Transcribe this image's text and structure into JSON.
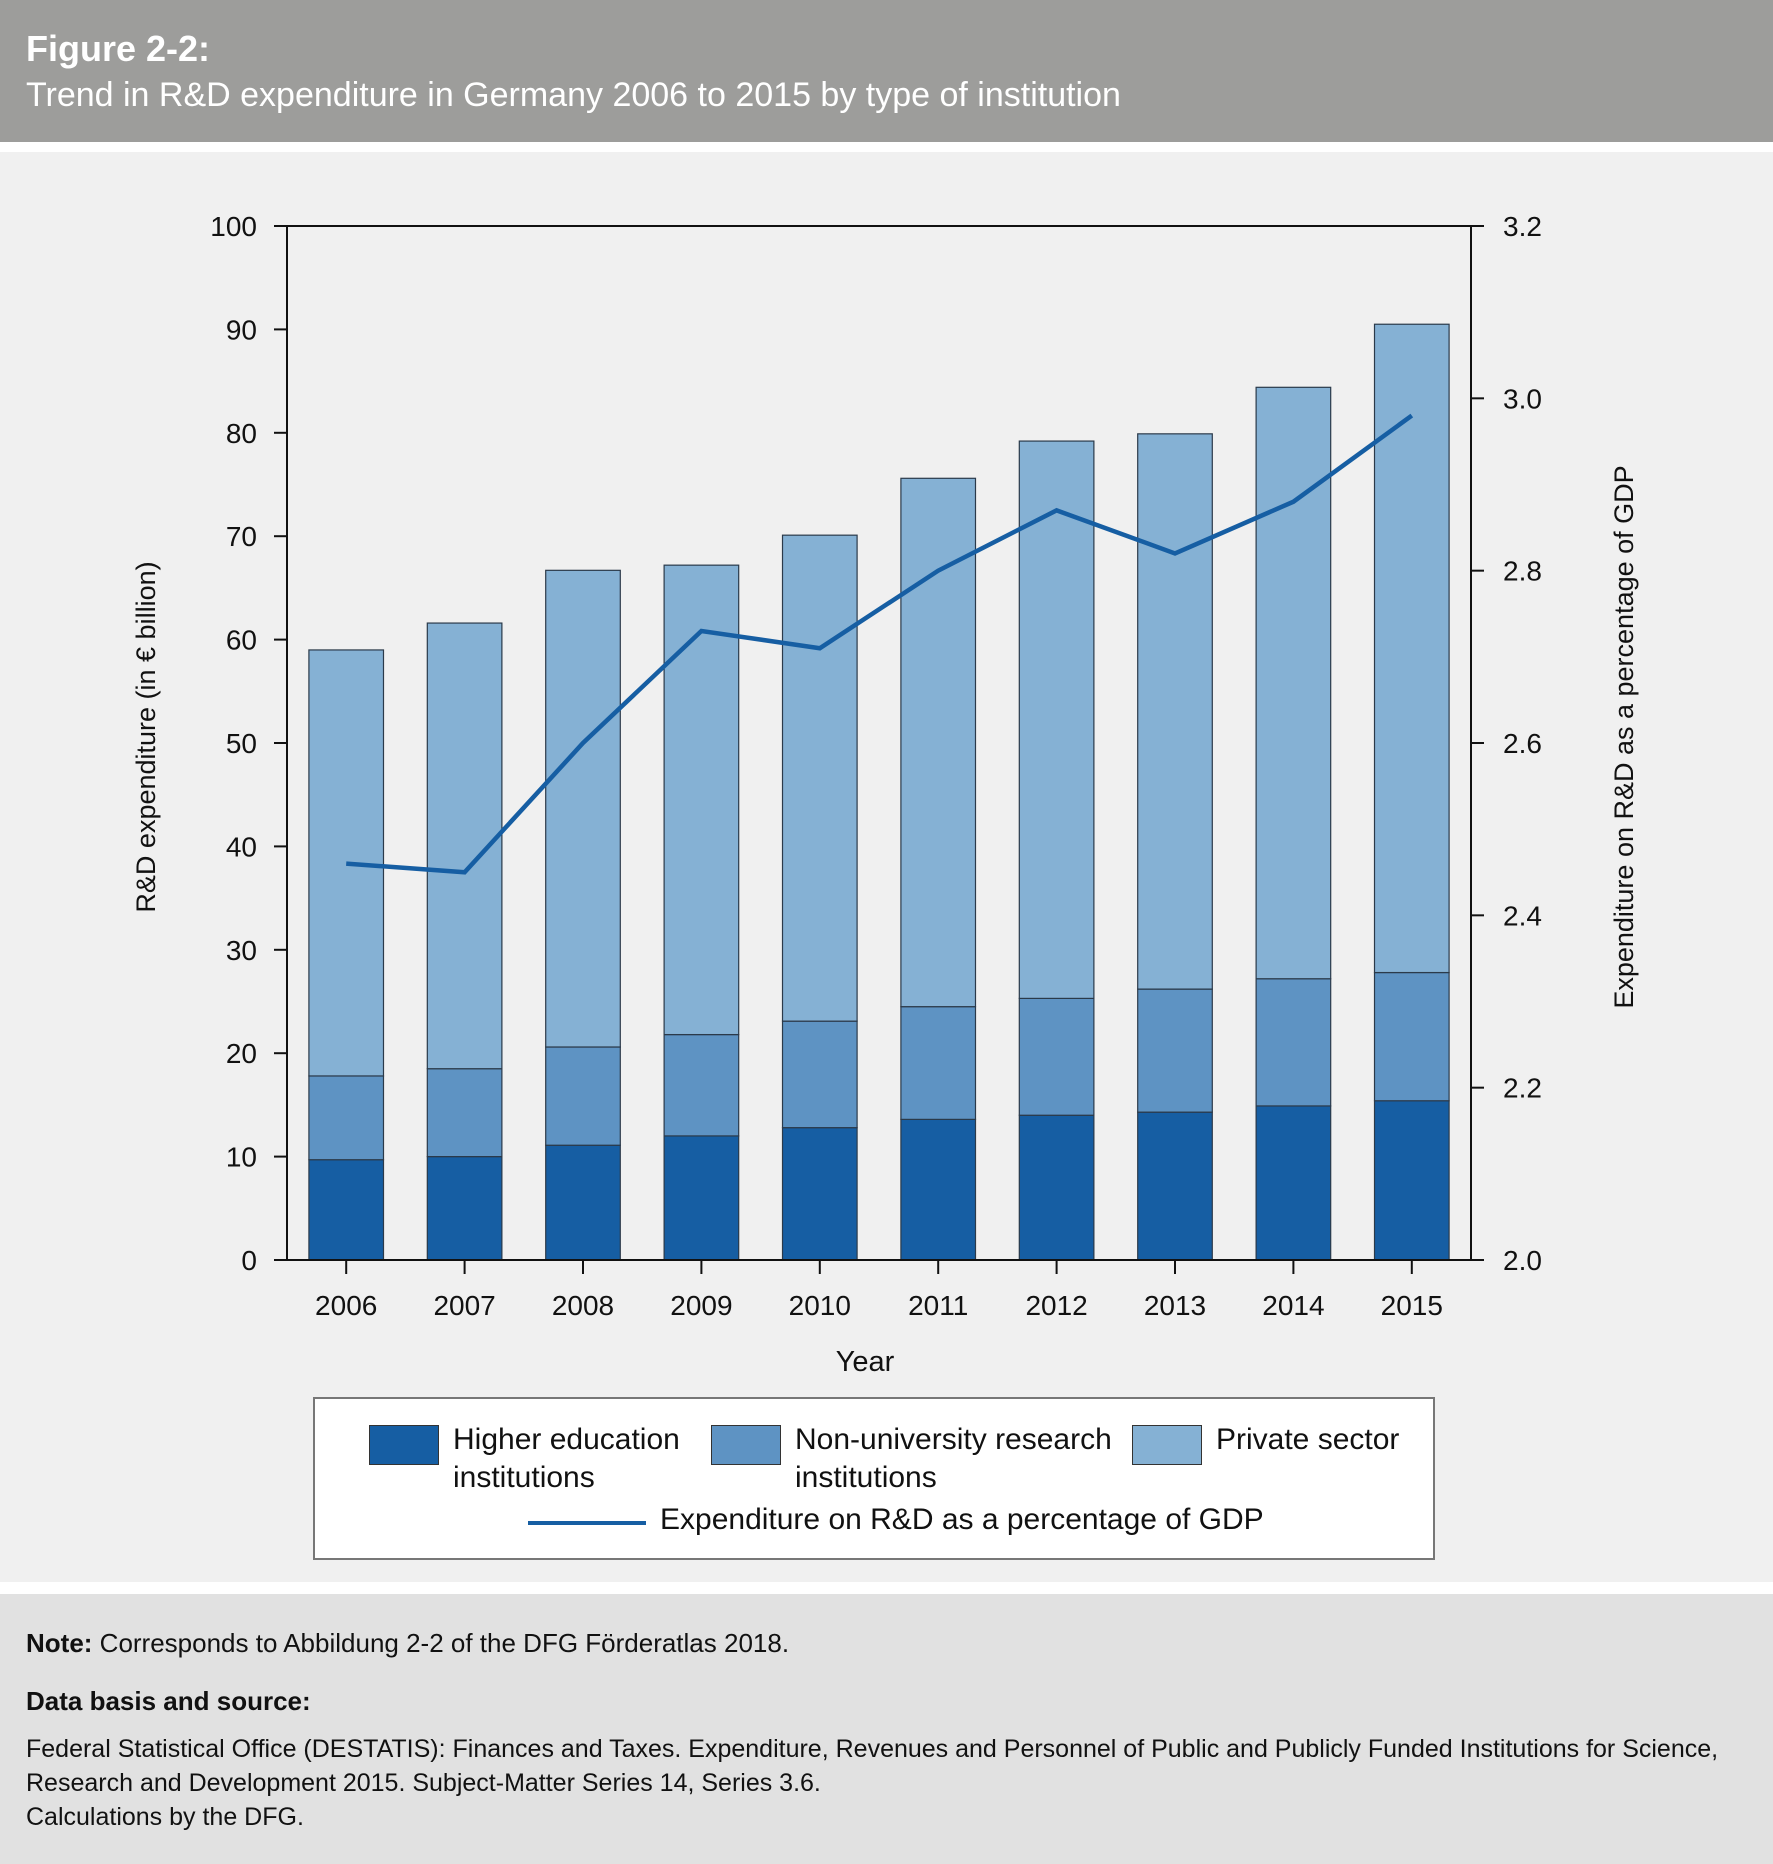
{
  "header": {
    "figure_label": "Figure 2-2:",
    "title": "Trend in R&D expenditure in Germany 2006 to 2015 by type of institution"
  },
  "chart_data": {
    "type": "bar",
    "stacked": true,
    "title": "Trend in R&D expenditure in Germany 2006 to 2015 by type of institution",
    "xlabel": "Year",
    "ylabel": "R&D expenditure (in € billion)",
    "y2label": "Expenditure on R&D as a percentage of GDP",
    "ylim": [
      0,
      100
    ],
    "y2lim": [
      2.0,
      3.2
    ],
    "yticks": [
      "0",
      "10",
      "20",
      "30",
      "40",
      "50",
      "60",
      "70",
      "80",
      "90",
      "100"
    ],
    "y2ticks": [
      "2.0",
      "2.2",
      "2.4",
      "2.6",
      "2.8",
      "3.0",
      "3.2"
    ],
    "categories": [
      "2006",
      "2007",
      "2008",
      "2009",
      "2010",
      "2011",
      "2012",
      "2013",
      "2014",
      "2015"
    ],
    "series": [
      {
        "name": "Higher education institutions",
        "color": "#165ea3",
        "values": [
          9.7,
          10.0,
          11.1,
          12.0,
          12.8,
          13.6,
          14.0,
          14.3,
          14.9,
          15.4
        ]
      },
      {
        "name": "Non-university research institutions",
        "color": "#5e93c3",
        "values": [
          8.1,
          8.5,
          9.5,
          9.8,
          10.3,
          10.9,
          11.3,
          11.9,
          12.3,
          12.4
        ]
      },
      {
        "name": "Private sector",
        "color": "#85b1d4",
        "values": [
          41.2,
          43.1,
          46.1,
          45.4,
          47.0,
          51.1,
          53.9,
          53.7,
          57.2,
          62.7
        ]
      }
    ],
    "line_series": {
      "name": "Expenditure on R&D as a percentage of GDP",
      "axis": "right",
      "color": "#165ea3",
      "values": [
        2.46,
        2.45,
        2.6,
        2.73,
        2.71,
        2.8,
        2.87,
        2.82,
        2.88,
        2.98
      ]
    },
    "legend_position": "bottom"
  },
  "legend": {
    "items": [
      {
        "label_line1": "Higher education",
        "label_line2": "institutions"
      },
      {
        "label_line1": "Non-university research",
        "label_line2": "institutions"
      },
      {
        "label_line1": "Private sector",
        "label_line2": ""
      }
    ],
    "line_label": "Expenditure on R&D as a percentage of GDP"
  },
  "notes": {
    "note_label": "Note:",
    "note_text": " Corresponds to Abbildung 2-2 of the DFG Förderatlas 2018.",
    "source_heading": "Data basis and source:",
    "source_lines": [
      "Federal Statistical Office (DESTATIS): Finances and Taxes. Expenditure, Revenues and Personnel of Public and Publicly Funded Institutions for Science,",
      "Research and Development 2015. Subject-Matter Series 14, Series 3.6.",
      "Calculations by the DFG."
    ]
  }
}
